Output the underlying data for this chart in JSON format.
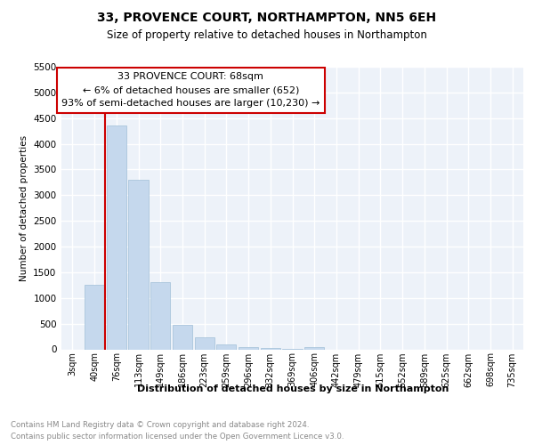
{
  "title": "33, PROVENCE COURT, NORTHAMPTON, NN5 6EH",
  "subtitle": "Size of property relative to detached houses in Northampton",
  "xlabel": "Distribution of detached houses by size in Northampton",
  "ylabel": "Number of detached properties",
  "annotation_line1": "33 PROVENCE COURT: 68sqm",
  "annotation_line2": "← 6% of detached houses are smaller (652)",
  "annotation_line3": "93% of semi-detached houses are larger (10,230) →",
  "footer_line1": "Contains HM Land Registry data © Crown copyright and database right 2024.",
  "footer_line2": "Contains public sector information licensed under the Open Government Licence v3.0.",
  "bar_color": "#c5d8ed",
  "bar_edge_color": "#a0bfd8",
  "annotation_line_color": "#cc0000",
  "annotation_box_color": "#cc0000",
  "categories": [
    "3sqm",
    "40sqm",
    "76sqm",
    "113sqm",
    "149sqm",
    "186sqm",
    "223sqm",
    "259sqm",
    "296sqm",
    "332sqm",
    "369sqm",
    "406sqm",
    "442sqm",
    "479sqm",
    "515sqm",
    "552sqm",
    "589sqm",
    "625sqm",
    "662sqm",
    "698sqm",
    "735sqm"
  ],
  "values": [
    0,
    1255,
    4350,
    3300,
    1300,
    480,
    240,
    100,
    50,
    20,
    10,
    50,
    0,
    0,
    0,
    0,
    0,
    0,
    0,
    0,
    0
  ],
  "property_line_x": 2,
  "ylim": [
    0,
    5500
  ],
  "yticks": [
    0,
    500,
    1000,
    1500,
    2000,
    2500,
    3000,
    3500,
    4000,
    4500,
    5000,
    5500
  ],
  "background_color": "#edf2f9"
}
